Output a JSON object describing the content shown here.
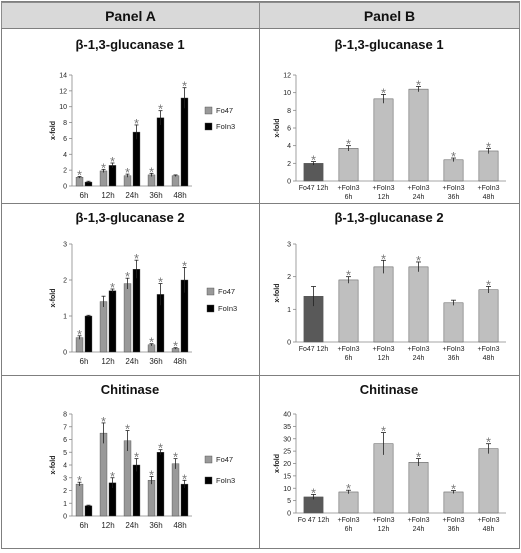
{
  "headers": {
    "left": "Panel A",
    "right": "Panel B"
  },
  "colors": {
    "fo47": "#999999",
    "foin3": "#000000",
    "b_first": "#595959",
    "b_rest": "#bfbfbf",
    "border": "#8c8c8c"
  },
  "chart_data": [
    {
      "id": "a1",
      "panel": "Panel A",
      "type": "bar",
      "title": "β-1,3-glucanase 1",
      "ylabel": "x-fold",
      "ylim": [
        0,
        14
      ],
      "yticks": [
        0,
        2,
        4,
        6,
        8,
        10,
        12,
        14
      ],
      "categories": [
        "6h",
        "12h",
        "24h",
        "36h",
        "48h"
      ],
      "series": [
        {
          "name": "Fo47",
          "values": [
            1.1,
            1.9,
            1.3,
            1.4,
            1.3
          ],
          "errors": [
            0.1,
            0.2,
            0.2,
            0.2,
            0.1
          ],
          "sig": [
            true,
            true,
            true,
            true,
            false
          ]
        },
        {
          "name": "FoIn3",
          "values": [
            0.5,
            2.6,
            6.8,
            8.6,
            11.1
          ],
          "errors": [
            0.1,
            0.3,
            0.9,
            0.9,
            1.3
          ],
          "sig": [
            false,
            true,
            true,
            true,
            true
          ]
        }
      ],
      "legend": "right"
    },
    {
      "id": "b1",
      "panel": "Panel B",
      "type": "bar",
      "title": "β-1,3-glucanase 1",
      "ylabel": "x-fold",
      "ylim": [
        0,
        12
      ],
      "yticks": [
        0,
        2,
        4,
        6,
        8,
        10,
        12
      ],
      "categories": [
        [
          "Fo47 12h"
        ],
        [
          "+FoIn3",
          "6h"
        ],
        [
          "+FoIn3",
          "12h"
        ],
        [
          "+FoIn3",
          "24h"
        ],
        [
          "+FoIn3",
          "36h"
        ],
        [
          "+FoIn3",
          "48h"
        ]
      ],
      "values": [
        2.0,
        3.7,
        9.3,
        10.4,
        2.4,
        3.4
      ],
      "errors": [
        0.2,
        0.3,
        0.5,
        0.3,
        0.2,
        0.3
      ],
      "sig": [
        true,
        true,
        true,
        true,
        true,
        true
      ]
    },
    {
      "id": "a2",
      "panel": "Panel A",
      "type": "bar",
      "title": "β-1,3-glucanase 2",
      "ylabel": "x-fold",
      "ylim": [
        0,
        3
      ],
      "yticks": [
        0,
        1,
        2,
        3
      ],
      "categories": [
        "6h",
        "12h",
        "24h",
        "36h",
        "48h"
      ],
      "series": [
        {
          "name": "Fo47",
          "values": [
            0.4,
            1.4,
            1.9,
            0.2,
            0.1
          ],
          "errors": [
            0.05,
            0.15,
            0.15,
            0.03,
            0.02
          ],
          "sig": [
            true,
            false,
            true,
            true,
            true
          ]
        },
        {
          "name": "FoIn3",
          "values": [
            1.0,
            1.7,
            2.3,
            1.6,
            2.0
          ],
          "errors": [
            0.02,
            0.05,
            0.25,
            0.3,
            0.35
          ],
          "sig": [
            false,
            true,
            true,
            true,
            true
          ]
        }
      ],
      "legend": "right"
    },
    {
      "id": "b2",
      "panel": "Panel B",
      "type": "bar",
      "title": "β-1,3-glucanase 2",
      "ylabel": "x-fold",
      "ylim": [
        0,
        3
      ],
      "yticks": [
        0,
        1,
        2,
        3
      ],
      "categories": [
        [
          "Fo47 12h"
        ],
        [
          "+FoIn3",
          "6h"
        ],
        [
          "+FoIn3",
          "12h"
        ],
        [
          "+FoIn3",
          "24h"
        ],
        [
          "+FoIn3",
          "36h"
        ],
        [
          "+FoIn3",
          "48h"
        ]
      ],
      "values": [
        1.4,
        1.9,
        2.3,
        2.3,
        1.2,
        1.6
      ],
      "errors": [
        0.3,
        0.1,
        0.2,
        0.15,
        0.08,
        0.1
      ],
      "sig": [
        false,
        true,
        true,
        true,
        false,
        true
      ]
    },
    {
      "id": "a3",
      "panel": "Panel A",
      "type": "bar",
      "title": "Chitinase",
      "ylabel": "x-fold",
      "ylim": [
        0,
        8
      ],
      "yticks": [
        0,
        1,
        2,
        3,
        4,
        5,
        6,
        7,
        8
      ],
      "categories": [
        "6h",
        "12h",
        "24h",
        "36h",
        "48h"
      ],
      "series": [
        {
          "name": "Fo47",
          "values": [
            2.5,
            6.5,
            5.9,
            2.8,
            4.1
          ],
          "errors": [
            0.15,
            0.8,
            0.8,
            0.3,
            0.4
          ],
          "sig": [
            true,
            true,
            true,
            true,
            true
          ]
        },
        {
          "name": "FoIn3",
          "values": [
            0.8,
            2.6,
            4.0,
            5.0,
            2.5
          ],
          "errors": [
            0.05,
            0.4,
            0.5,
            0.2,
            0.3
          ],
          "sig": [
            false,
            true,
            true,
            true,
            true
          ]
        }
      ],
      "legend": "right"
    },
    {
      "id": "b3",
      "panel": "Panel B",
      "type": "bar",
      "title": "Chitinase",
      "ylabel": "x-fold",
      "ylim": [
        0,
        40
      ],
      "yticks": [
        0,
        5,
        10,
        15,
        20,
        25,
        30,
        35,
        40
      ],
      "categories": [
        [
          "Fo 47 12h"
        ],
        [
          "+FoIn3",
          "6h"
        ],
        [
          "+FoIn3",
          "12h"
        ],
        [
          "+FoIn3",
          "24h"
        ],
        [
          "+FoIn3",
          "36h"
        ],
        [
          "+FoIn3",
          "48h"
        ]
      ],
      "values": [
        6.5,
        8.5,
        28,
        20.5,
        8.5,
        26
      ],
      "errors": [
        1.0,
        0.7,
        4.5,
        1.5,
        0.6,
        2.0
      ],
      "sig": [
        true,
        true,
        true,
        true,
        true,
        true
      ]
    }
  ]
}
